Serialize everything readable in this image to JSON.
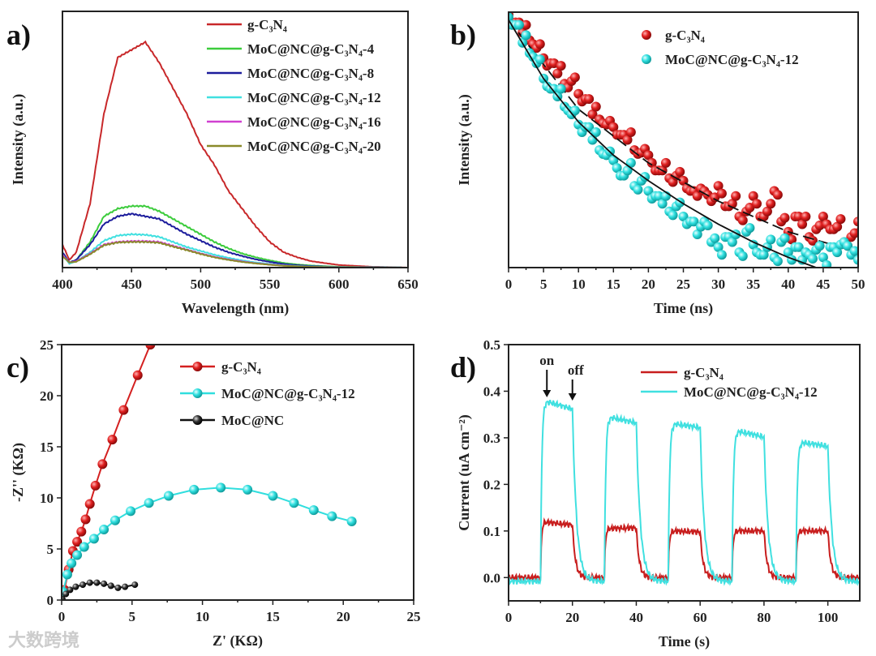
{
  "watermark": "大数跨境",
  "chart_data": [
    {
      "panel": "a)",
      "type": "line",
      "xlabel": "Wavelength (nm)",
      "ylabel": "Intensity (a.u.)",
      "xlim": [
        400,
        650
      ],
      "ylim": [
        0,
        100
      ],
      "xticks": [
        400,
        450,
        500,
        550,
        600,
        650
      ],
      "yticks": [],
      "legend_position": "top-right",
      "x": [
        400,
        405,
        410,
        420,
        430,
        440,
        450,
        460,
        470,
        480,
        490,
        500,
        510,
        520,
        530,
        540,
        550,
        560,
        570,
        580,
        600,
        625,
        650
      ],
      "series": [
        {
          "name": "g-C₃N₄",
          "color": "#c8282a",
          "values": [
            9,
            3,
            6,
            25,
            60,
            82,
            85,
            88,
            80,
            70,
            60,
            48,
            40,
            30,
            23,
            16,
            10,
            6,
            4,
            2.5,
            1,
            0.3,
            0
          ]
        },
        {
          "name": "MoC@NC@g-C₃N₄-4",
          "color": "#3ccc3c",
          "values": [
            6,
            2,
            3,
            10,
            20,
            23,
            24,
            24,
            22,
            19,
            16,
            13,
            10,
            7.5,
            5.5,
            4,
            2.8,
            1.8,
            1.2,
            0.8,
            0.3,
            0.1,
            0
          ]
        },
        {
          "name": "MoC@NC@g-C₃N₄-8",
          "color": "#1c1c9c",
          "values": [
            6,
            2,
            3,
            9,
            17,
            20,
            21,
            20,
            19,
            16,
            13,
            10.5,
            8,
            6,
            4.5,
            3.2,
            2.2,
            1.4,
            0.9,
            0.6,
            0.2,
            0.1,
            0
          ]
        },
        {
          "name": "MoC@NC@g-C₃N₄-12",
          "color": "#40e0e0",
          "values": [
            5,
            1.5,
            2.5,
            6,
            10.5,
            12.5,
            13,
            12.8,
            12,
            10,
            8,
            6.5,
            5,
            3.8,
            2.8,
            2,
            1.4,
            0.9,
            0.6,
            0.4,
            0.2,
            0.1,
            0
          ]
        },
        {
          "name": "MoC@NC@g-C₃N₄-16",
          "color": "#d040d0",
          "values": [
            5,
            2,
            2.5,
            5.5,
            9,
            10,
            10.3,
            10.3,
            10,
            8.5,
            7,
            5.5,
            4.2,
            3.2,
            2.4,
            1.7,
            1.2,
            0.8,
            0.5,
            0.3,
            0.1,
            0,
            0
          ]
        },
        {
          "name": "MoC@NC@g-C₃N₄-20",
          "color": "#8a8a2a",
          "values": [
            4.5,
            2,
            2.3,
            5.2,
            8.7,
            9.8,
            10,
            10,
            9.7,
            8.2,
            6.8,
            5.3,
            4,
            3,
            2.2,
            1.6,
            1.1,
            0.7,
            0.5,
            0.3,
            0.1,
            0,
            0
          ]
        }
      ]
    },
    {
      "panel": "b)",
      "type": "scatter",
      "xlabel": "Time (ns)",
      "ylabel": "Intensity (a.u.)",
      "xlim": [
        0,
        50
      ],
      "ylim": [
        0,
        1
      ],
      "xticks": [
        0,
        5,
        10,
        15,
        20,
        25,
        30,
        35,
        40,
        45,
        50
      ],
      "yticks": [],
      "legend_position": "top-right",
      "t_start": 0,
      "t_step": 1,
      "series": [
        {
          "name": "g-C₃N₄",
          "color": "#d42020",
          "values": [
            0.99,
            0.96,
            0.92,
            0.89,
            0.86,
            0.82,
            0.8,
            0.76,
            0.72,
            0.73,
            0.68,
            0.66,
            0.6,
            0.58,
            0.56,
            0.55,
            0.52,
            0.5,
            0.46,
            0.45,
            0.44,
            0.38,
            0.38,
            0.35,
            0.36,
            0.34,
            0.3,
            0.28,
            0.3,
            0.26,
            0.32,
            0.24,
            0.25,
            0.2,
            0.22,
            0.28,
            0.2,
            0.22,
            0.3,
            0.18,
            0.14,
            0.2,
            0.17,
            0.12,
            0.15,
            0.2,
            0.15,
            0.16,
            0.1,
            0.12,
            0.18
          ],
          "fit": [
            [
              0,
              0.97
            ],
            [
              10,
              0.62
            ],
            [
              20,
              0.41
            ],
            [
              30,
              0.26
            ],
            [
              40,
              0.14
            ],
            [
              50,
              0.06
            ]
          ]
        },
        {
          "name": "MoC@NC@g-C₃N₄-12",
          "color": "#30e0e0",
          "values": [
            0.98,
            0.95,
            0.88,
            0.84,
            0.8,
            0.74,
            0.7,
            0.67,
            0.63,
            0.6,
            0.56,
            0.55,
            0.5,
            0.46,
            0.44,
            0.42,
            0.36,
            0.38,
            0.32,
            0.34,
            0.3,
            0.28,
            0.25,
            0.22,
            0.24,
            0.2,
            0.18,
            0.13,
            0.18,
            0.1,
            0.08,
            0.12,
            0.1,
            0.06,
            0.14,
            0.09,
            0.05,
            0.08,
            0.04,
            0.1,
            0.06,
            0.08,
            0.03,
            0.05,
            0.07,
            0.04,
            0.08,
            0.06,
            0.1,
            0.05,
            0.03
          ],
          "fit": [
            [
              0,
              0.97
            ],
            [
              5,
              0.74
            ],
            [
              10,
              0.57
            ],
            [
              15,
              0.44
            ],
            [
              20,
              0.34
            ],
            [
              25,
              0.25
            ],
            [
              30,
              0.17
            ],
            [
              35,
              0.1
            ],
            [
              40,
              0.04
            ],
            [
              44,
              0
            ]
          ]
        }
      ]
    },
    {
      "panel": "c)",
      "type": "line",
      "xlabel": "Z' (KΩ)",
      "ylabel": "-Z'' (KΩ)",
      "xlim": [
        0,
        25
      ],
      "ylim": [
        0,
        25
      ],
      "xticks": [
        0,
        5,
        10,
        15,
        20,
        25
      ],
      "yticks": [
        0,
        5,
        10,
        15,
        20,
        25
      ],
      "legend_position": "top-right",
      "series": [
        {
          "name": "g-C₃N₄",
          "color": "#d42020",
          "points": [
            [
              0.2,
              1
            ],
            [
              0.5,
              3
            ],
            [
              0.8,
              4.8
            ],
            [
              1.1,
              5.7
            ],
            [
              1.4,
              6.7
            ],
            [
              1.7,
              7.9
            ],
            [
              2,
              9.4
            ],
            [
              2.4,
              11.2
            ],
            [
              2.9,
              13.3
            ],
            [
              3.6,
              15.7
            ],
            [
              4.4,
              18.6
            ],
            [
              5.4,
              22
            ],
            [
              6.3,
              25
            ]
          ]
        },
        {
          "name": "MoC@NC@g-C₃N₄-12",
          "color": "#30dede",
          "points": [
            [
              0.1,
              0.8
            ],
            [
              0.4,
              2.5
            ],
            [
              0.7,
              3.6
            ],
            [
              1.1,
              4.4
            ],
            [
              1.6,
              5.2
            ],
            [
              2.3,
              6
            ],
            [
              3,
              6.9
            ],
            [
              3.8,
              7.8
            ],
            [
              4.9,
              8.7
            ],
            [
              6.2,
              9.5
            ],
            [
              7.6,
              10.2
            ],
            [
              9.4,
              10.8
            ],
            [
              11.3,
              11
            ],
            [
              13.2,
              10.8
            ],
            [
              15,
              10.2
            ],
            [
              16.5,
              9.5
            ],
            [
              17.9,
              8.8
            ],
            [
              19.2,
              8.2
            ],
            [
              20.6,
              7.7
            ]
          ]
        },
        {
          "name": "MoC@NC",
          "color": "#111111",
          "points": [
            [
              0.05,
              0.1
            ],
            [
              0.3,
              0.6
            ],
            [
              0.6,
              1
            ],
            [
              1,
              1.3
            ],
            [
              1.5,
              1.5
            ],
            [
              2,
              1.7
            ],
            [
              2.5,
              1.7
            ],
            [
              3,
              1.6
            ],
            [
              3.5,
              1.4
            ],
            [
              4,
              1.2
            ],
            [
              4.5,
              1.3
            ],
            [
              5.2,
              1.5
            ]
          ]
        }
      ]
    },
    {
      "panel": "d)",
      "type": "line",
      "xlabel": "Time (s)",
      "ylabel": "Current (uA cm⁻²)",
      "xlim": [
        0,
        110
      ],
      "ylim": [
        -0.05,
        0.5
      ],
      "xticks": [
        0,
        20,
        40,
        60,
        80,
        100
      ],
      "yticks": [
        "0.0",
        "0.1",
        "0.2",
        "0.3",
        "0.4",
        "0.5"
      ],
      "legend_position": "top-right",
      "annotations": [
        "on",
        "off"
      ],
      "light_on": [
        10,
        30,
        50,
        70,
        90
      ],
      "light_off": [
        20,
        40,
        60,
        80,
        100
      ],
      "series": [
        {
          "name": "g-C₃N₄",
          "color": "#c81e1e",
          "plateaus": [
            [
              0.12,
              0.113
            ],
            [
              0.105,
              0.107
            ],
            [
              0.1,
              0.098
            ],
            [
              0.1,
              0.1
            ],
            [
              0.1,
              0.1
            ]
          ]
        },
        {
          "name": "MoC@NC@g-C₃N₄-12",
          "color": "#40e0e0",
          "plateaus": [
            [
              0.39,
              0.37
            ],
            [
              0.355,
              0.34
            ],
            [
              0.34,
              0.33
            ],
            [
              0.325,
              0.31
            ],
            [
              0.3,
              0.29
            ]
          ]
        }
      ]
    }
  ]
}
